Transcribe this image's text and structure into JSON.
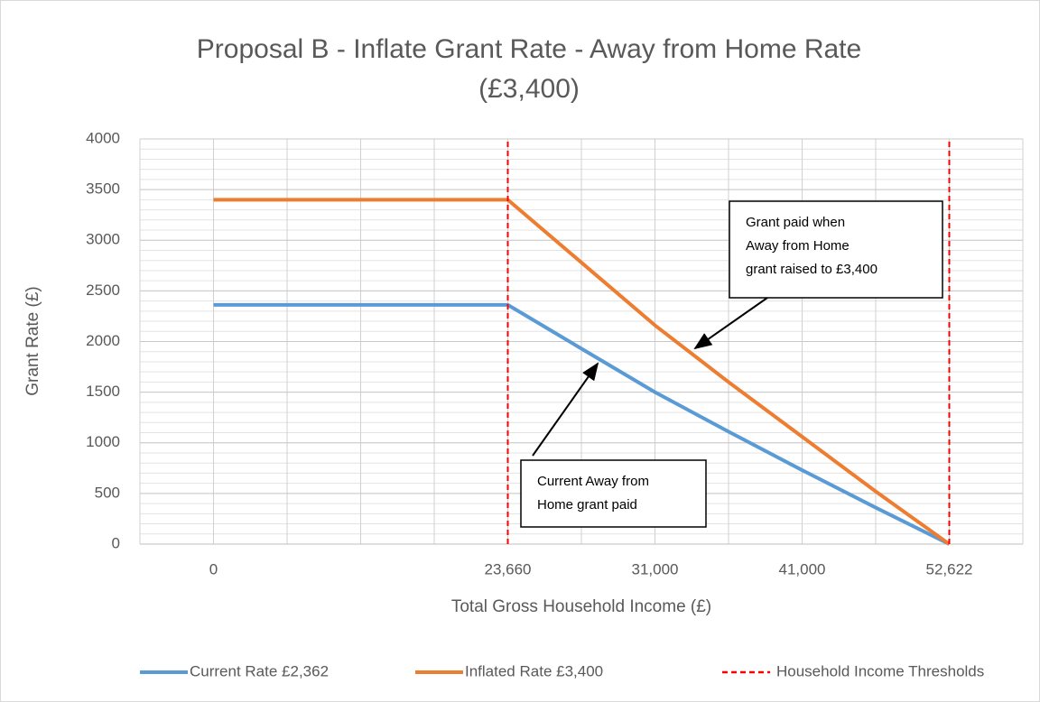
{
  "chart_data": {
    "type": "line",
    "title": [
      "Proposal B - Inflate Grant Rate - Away from Home Rate",
      "(£3,400)"
    ],
    "x_label": "Total Gross Household Income (£)",
    "y_label": "Grant Rate (£)",
    "categories": [
      "0",
      null,
      null,
      null,
      "23,660",
      null,
      "31,000",
      null,
      "41,000",
      null,
      "52,622"
    ],
    "series": [
      {
        "name": "Current Rate £2,362",
        "color": "#5b9bd5",
        "style": "solid",
        "values": [
          2362,
          2362,
          2362,
          2362,
          2362,
          1930,
          1500,
          1110,
          730,
          360,
          0
        ]
      },
      {
        "name": "Inflated Rate £3,400",
        "color": "#ed7d31",
        "style": "solid",
        "values": [
          3400,
          3400,
          3400,
          3400,
          3400,
          2780,
          2160,
          1600,
          1060,
          520,
          0
        ]
      },
      {
        "name": "Household Income Thresholds",
        "color": "#ff0000",
        "style": "vertical-dashed",
        "values": [
          null,
          null,
          null,
          null,
          4000,
          null,
          null,
          null,
          null,
          null,
          4000
        ]
      }
    ],
    "ylim": [
      0,
      4000
    ],
    "yticks": [
      0,
      500,
      1000,
      1500,
      2000,
      2500,
      3000,
      3500,
      4000
    ],
    "yminor_step": 100,
    "grid": true,
    "legend": "bottom",
    "annotations": [
      {
        "lines": [
          "Grant paid when",
          "Away from Home",
          "grant raised to £3,400"
        ]
      },
      {
        "lines": [
          "Current Away from",
          "Home grant paid"
        ]
      }
    ]
  }
}
